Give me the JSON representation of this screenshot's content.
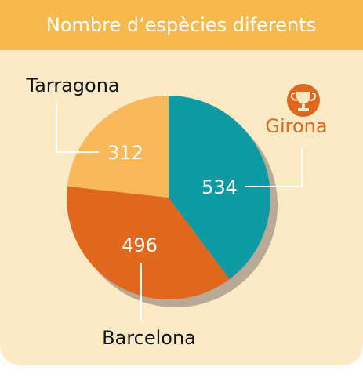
{
  "chart_data": {
    "type": "pie",
    "title": "Nombre d’espècies diferents",
    "categories": [
      "Girona",
      "Barcelona",
      "Tarragona"
    ],
    "values": [
      534,
      496,
      312
    ],
    "colors": [
      "#0e9aa3",
      "#e0671e",
      "#f9b95a"
    ]
  }
}
